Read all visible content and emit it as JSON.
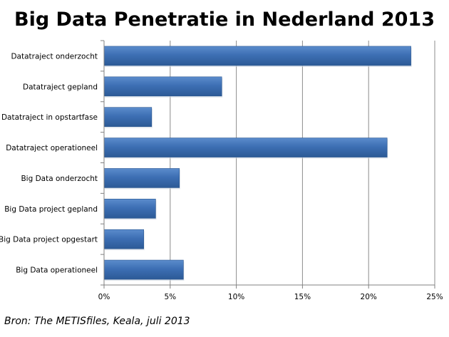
{
  "title": "Big Data Penetratie in Nederland 2013",
  "source": "Bron: The METISfiles, Keala, juli 2013",
  "colors": {
    "bar": "#3d6fb4",
    "bar_dark": "#2a568f",
    "bar_light": "#5b8ccc",
    "grid": "#8c8c8c",
    "axis": "#808080"
  },
  "chart_data": {
    "type": "bar",
    "orientation": "horizontal",
    "categories": [
      "Datatraject onderzocht",
      "Datatraject gepland",
      "Datatraject in opstartfase",
      "Datatraject operationeel",
      "Big Data onderzocht",
      "Big Data project gepland",
      "Big Data project opgestart",
      "Big Data operationeel"
    ],
    "values": [
      23.2,
      8.9,
      3.6,
      21.4,
      5.7,
      3.9,
      3.0,
      6.0
    ],
    "xlim": [
      0,
      25
    ],
    "xticks": [
      0,
      5,
      10,
      15,
      20,
      25
    ],
    "xtick_labels": [
      "0%",
      "5%",
      "10%",
      "15%",
      "20%",
      "25%"
    ],
    "grid": true,
    "legend": "none",
    "xlabel": "",
    "ylabel": ""
  }
}
